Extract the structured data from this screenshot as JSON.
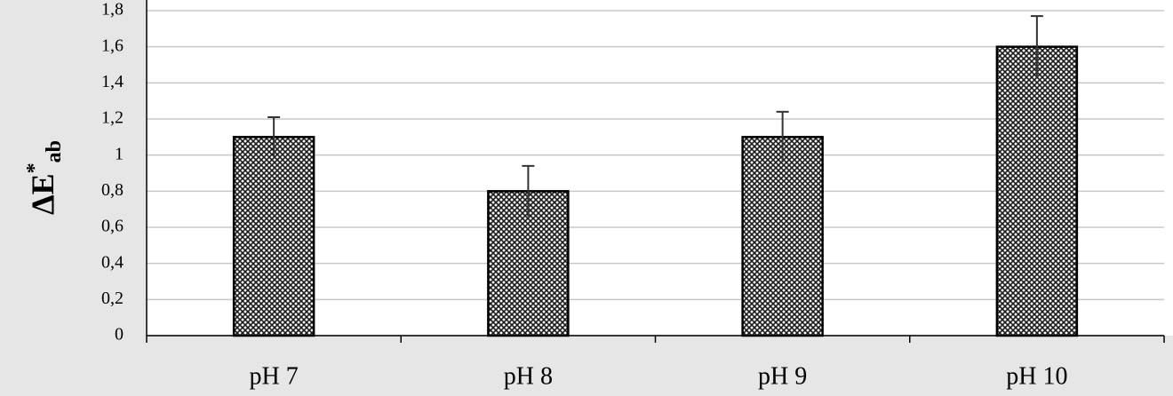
{
  "chart_data": {
    "type": "bar",
    "y_label": {
      "text": "ΔE",
      "sup": "*",
      "sub": "ab"
    },
    "categories": [
      "pH 7",
      "pH 8",
      "pH 9",
      "pH 10"
    ],
    "values": [
      1.1,
      0.8,
      1.1,
      1.6
    ],
    "errors": [
      0.11,
      0.14,
      0.14,
      0.17
    ],
    "color": "#1a1a1a",
    "ylim": [
      0,
      1.8
    ],
    "yticks": [
      0,
      {
        "value": 0.2,
        "label": "0,2"
      },
      {
        "value": 0.4,
        "label": "0,4"
      },
      {
        "value": 0.6,
        "label": "0,6"
      },
      {
        "value": 0.8,
        "label": "0,8"
      },
      1,
      {
        "value": 1.2,
        "label": "1,2"
      },
      {
        "value": 1.4,
        "label": "1,4"
      },
      {
        "value": 1.6,
        "label": "1,6"
      },
      {
        "value": 1.8,
        "label": "1,8"
      }
    ],
    "grid": true
  }
}
